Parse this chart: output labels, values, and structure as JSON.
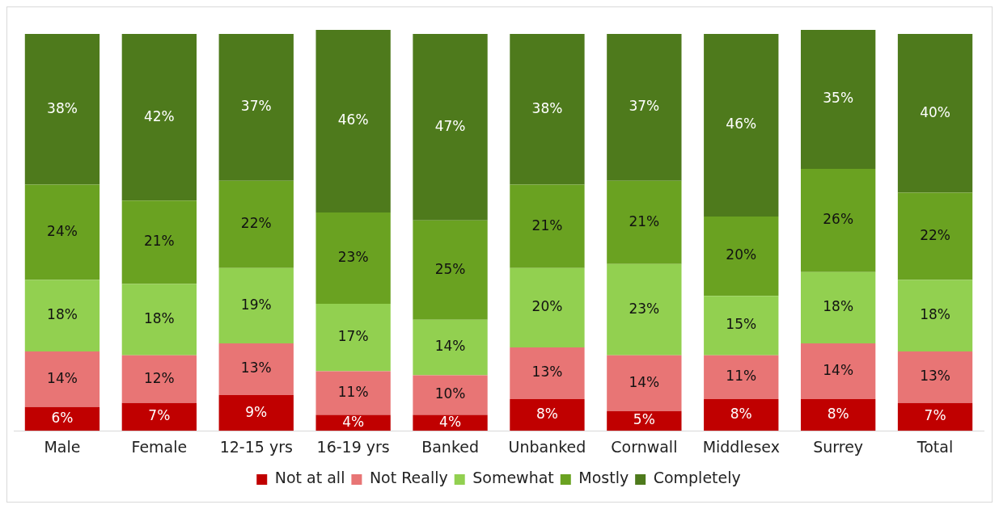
{
  "chart_data": {
    "type": "bar",
    "stacked": true,
    "tick_labels": "x",
    "legend": "bottom",
    "categories": [
      "Male",
      "Female",
      "12-15 yrs",
      "16-19 yrs",
      "Banked",
      "Unbanked",
      "Cornwall",
      "Middlesex",
      "Surrey",
      "Total"
    ],
    "series": [
      {
        "name": "Not at all",
        "color": "#c00000",
        "values": [
          6,
          7,
          9,
          4,
          4,
          8,
          5,
          8,
          8,
          7
        ],
        "value_labels": [
          "6%",
          "7%",
          "9%",
          "4%",
          "4%",
          "8%",
          "5%",
          "8%",
          "8%",
          "7%"
        ]
      },
      {
        "name": "Not Really",
        "color": "#e87575",
        "values": [
          14,
          12,
          13,
          11,
          10,
          13,
          14,
          11,
          14,
          13
        ],
        "value_labels": [
          "14%",
          "12%",
          "13%",
          "11%",
          "10%",
          "13%",
          "14%",
          "11%",
          "14%",
          "13%"
        ]
      },
      {
        "name": "Somewhat",
        "color": "#92d050",
        "values": [
          18,
          18,
          19,
          17,
          14,
          20,
          23,
          15,
          18,
          18
        ],
        "value_labels": [
          "18%",
          "18%",
          "19%",
          "17%",
          "14%",
          "20%",
          "23%",
          "15%",
          "18%",
          "18%"
        ]
      },
      {
        "name": "Mostly",
        "color": "#6aa221",
        "values": [
          24,
          21,
          22,
          23,
          25,
          21,
          21,
          20,
          26,
          22
        ],
        "value_labels": [
          "24%",
          "21%",
          "22%",
          "23%",
          "25%",
          "21%",
          "21%",
          "20%",
          "26%",
          "22%"
        ]
      },
      {
        "name": "Completely",
        "color": "#4e7a1c",
        "values": [
          38,
          42,
          37,
          46,
          47,
          38,
          37,
          46,
          35,
          40
        ],
        "value_labels": [
          "38%",
          "42%",
          "37%",
          "46%",
          "47%",
          "38%",
          "37%",
          "46%",
          "35%",
          "40%"
        ]
      }
    ]
  }
}
